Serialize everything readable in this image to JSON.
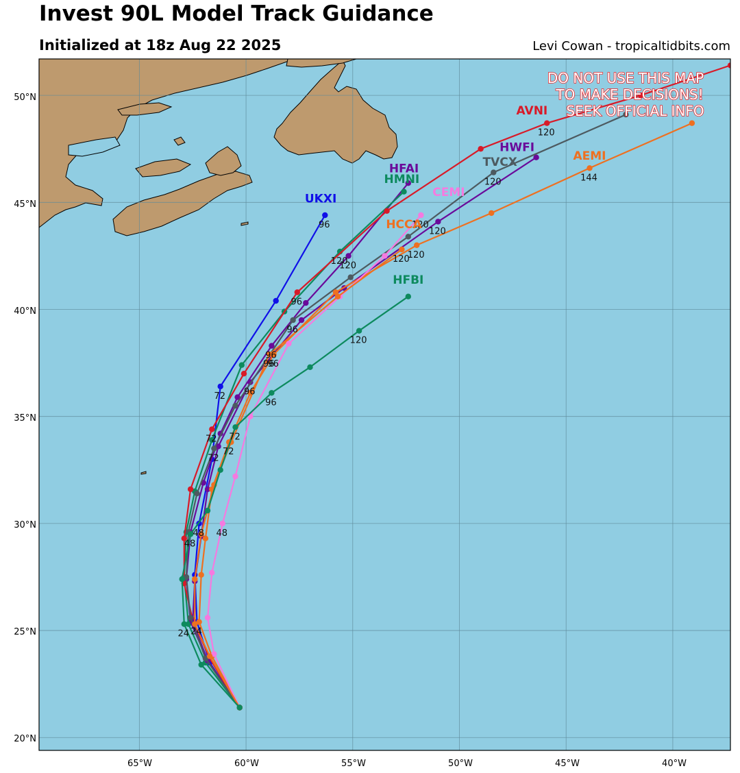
{
  "header": {
    "title": "Invest 90L Model Track Guidance",
    "subtitle": "Initialized at 18z Aug 22 2025",
    "credit": "Levi Cowan - tropicaltidbits.com"
  },
  "warning": [
    "DO NOT USE THIS MAP",
    "TO MAKE DECISIONS!",
    "SEEK OFFICIAL INFO"
  ],
  "colors": {
    "ocean": "#90cde2",
    "land": "#be9a6e",
    "grid": "#5e8a9a",
    "warning": "#e8262a"
  },
  "axes": {
    "lon_ticks": [
      "65°W",
      "60°W",
      "55°W",
      "50°W",
      "45°W",
      "40°W"
    ],
    "lat_ticks": [
      "20°N",
      "25°N",
      "30°N",
      "35°N",
      "40°N",
      "45°N",
      "50°N"
    ]
  },
  "chart_data": {
    "type": "map",
    "lon_range": [
      -69.7,
      -37.3
    ],
    "lat_range": [
      19.4,
      51.7
    ],
    "grid": true,
    "series": [
      {
        "name": "UKXI",
        "color": "#1010e8",
        "points": [
          [
            -60.3,
            21.4
          ],
          [
            -61.7,
            23.5
          ],
          [
            -62.3,
            25.4
          ],
          [
            -62.4,
            27.6
          ],
          [
            -62.2,
            30.0
          ],
          [
            -61.6,
            33.0
          ],
          [
            -61.2,
            36.4
          ],
          [
            -58.6,
            40.4
          ],
          [
            -56.3,
            44.4
          ]
        ],
        "hour_labels": [
          {
            "lon": -56.3,
            "lat": 44.4,
            "text": "96"
          },
          {
            "lon": -61.2,
            "lat": 36.4,
            "text": "72"
          },
          {
            "lon": -62.2,
            "lat": 30.0,
            "text": "48"
          },
          {
            "lon": -62.3,
            "lat": 25.4,
            "text": "24"
          }
        ]
      },
      {
        "name": "HFAI",
        "color": "#6a0a9a",
        "points": [
          [
            -60.3,
            21.4
          ],
          [
            -61.8,
            23.6
          ],
          [
            -62.6,
            25.4
          ],
          [
            -62.8,
            27.4
          ],
          [
            -62.6,
            29.6
          ],
          [
            -62.0,
            31.9
          ],
          [
            -61.2,
            34.2
          ],
          [
            -60.4,
            35.9
          ],
          [
            -58.8,
            38.3
          ],
          [
            -57.2,
            40.3
          ],
          [
            -55.2,
            42.5
          ],
          [
            -52.4,
            45.9
          ]
        ],
        "hour_labels": [
          {
            "lon": -55.2,
            "lat": 42.5,
            "text": "120"
          },
          {
            "lon": -58.8,
            "lat": 38.3,
            "text": "96"
          }
        ]
      },
      {
        "name": "HMNI",
        "color": "#0d8a5e",
        "points": [
          [
            -60.3,
            21.4
          ],
          [
            -61.9,
            23.5
          ],
          [
            -62.7,
            25.3
          ],
          [
            -62.9,
            27.5
          ],
          [
            -62.8,
            29.6
          ],
          [
            -62.4,
            31.5
          ],
          [
            -61.6,
            33.9
          ],
          [
            -60.2,
            37.4
          ],
          [
            -58.2,
            39.9
          ],
          [
            -55.6,
            42.7
          ],
          [
            -52.6,
            45.5
          ]
        ],
        "hour_labels": [
          {
            "lon": -55.6,
            "lat": 42.7,
            "text": "120"
          }
        ]
      },
      {
        "name": "AVNI",
        "color": "#d81a28",
        "points": [
          [
            -60.3,
            21.4
          ],
          [
            -61.7,
            23.7
          ],
          [
            -62.5,
            25.5
          ],
          [
            -62.9,
            27.2
          ],
          [
            -62.9,
            29.3
          ],
          [
            -62.6,
            31.6
          ],
          [
            -61.6,
            34.4
          ],
          [
            -60.1,
            37.0
          ],
          [
            -57.6,
            40.8
          ],
          [
            -53.4,
            44.6
          ],
          [
            -49.0,
            47.5
          ],
          [
            -45.9,
            48.7
          ],
          [
            -41.5,
            50.0
          ],
          [
            -37.3,
            51.4
          ]
        ],
        "hour_labels": [
          {
            "lon": -45.9,
            "lat": 48.7,
            "text": "120"
          },
          {
            "lon": -57.6,
            "lat": 40.8,
            "text": "96"
          },
          {
            "lon": -61.6,
            "lat": 34.4,
            "text": "72"
          }
        ]
      },
      {
        "name": "HWFI",
        "color": "#6a0a9a",
        "points": [
          [
            -60.3,
            21.4
          ],
          [
            -61.8,
            23.6
          ],
          [
            -62.5,
            25.4
          ],
          [
            -62.4,
            27.3
          ],
          [
            -62.1,
            29.4
          ],
          [
            -61.8,
            31.6
          ],
          [
            -61.3,
            33.6
          ],
          [
            -59.8,
            36.6
          ],
          [
            -57.4,
            39.5
          ],
          [
            -55.4,
            41.0
          ],
          [
            -51.0,
            44.1
          ],
          [
            -46.4,
            47.1
          ]
        ],
        "hour_labels": [
          {
            "lon": -51.0,
            "lat": 44.1,
            "text": "120"
          },
          {
            "lon": -59.8,
            "lat": 36.6,
            "text": "96"
          }
        ]
      },
      {
        "name": "TVCX",
        "color": "#4d5a60",
        "points": [
          [
            -60.3,
            21.4
          ],
          [
            -61.9,
            23.7
          ],
          [
            -62.6,
            25.6
          ],
          [
            -62.8,
            27.5
          ],
          [
            -62.7,
            29.6
          ],
          [
            -62.3,
            31.4
          ],
          [
            -61.5,
            33.5
          ],
          [
            -60.5,
            35.5
          ],
          [
            -57.8,
            39.5
          ],
          [
            -55.1,
            41.5
          ],
          [
            -52.4,
            43.4
          ],
          [
            -48.4,
            46.4
          ],
          [
            -42.2,
            49.1
          ]
        ],
        "hour_labels": [
          {
            "lon": -48.4,
            "lat": 46.4,
            "text": "120"
          },
          {
            "lon": -57.8,
            "lat": 39.5,
            "text": "96"
          },
          {
            "lon": -61.5,
            "lat": 33.5,
            "text": "72"
          }
        ]
      },
      {
        "name": "AEMI",
        "color": "#ee7020",
        "points": [
          [
            -60.3,
            21.4
          ],
          [
            -61.6,
            23.8
          ],
          [
            -62.2,
            25.4
          ],
          [
            -62.1,
            27.6
          ],
          [
            -61.9,
            29.3
          ],
          [
            -61.6,
            31.6
          ],
          [
            -60.8,
            33.8
          ],
          [
            -59.8,
            36.1
          ],
          [
            -58.7,
            37.9
          ],
          [
            -55.8,
            40.8
          ],
          [
            -52.0,
            43.0
          ],
          [
            -48.5,
            44.5
          ],
          [
            -43.9,
            46.6
          ],
          [
            -39.1,
            48.7
          ]
        ],
        "hour_labels": [
          {
            "lon": -43.9,
            "lat": 46.6,
            "text": "144"
          },
          {
            "lon": -52.0,
            "lat": 43.0,
            "text": "120"
          },
          {
            "lon": -58.7,
            "lat": 37.9,
            "text": "96"
          },
          {
            "lon": -60.8,
            "lat": 33.8,
            "text": "72"
          }
        ]
      },
      {
        "name": "CEMI",
        "color": "#f57ae0",
        "points": [
          [
            -60.3,
            21.4
          ],
          [
            -61.5,
            23.9
          ],
          [
            -61.8,
            25.6
          ],
          [
            -61.6,
            27.7
          ],
          [
            -61.1,
            30.0
          ],
          [
            -60.5,
            32.2
          ],
          [
            -59.8,
            35.0
          ],
          [
            -58.0,
            38.4
          ],
          [
            -55.6,
            40.6
          ],
          [
            -53.5,
            42.5
          ],
          [
            -51.8,
            44.4
          ]
        ],
        "hour_labels": [
          {
            "lon": -51.8,
            "lat": 44.4,
            "text": "120"
          },
          {
            "lon": -61.1,
            "lat": 30.0,
            "text": "48"
          }
        ]
      },
      {
        "name": "HCCA",
        "color": "#ee7020",
        "points": [
          [
            -60.3,
            21.4
          ],
          [
            -61.7,
            23.8
          ],
          [
            -62.4,
            25.3
          ],
          [
            -62.4,
            27.4
          ],
          [
            -62.1,
            29.5
          ],
          [
            -61.5,
            31.8
          ],
          [
            -60.7,
            33.8
          ],
          [
            -58.9,
            37.9
          ],
          [
            -55.7,
            40.6
          ],
          [
            -52.7,
            42.8
          ]
        ],
        "hour_labels": [
          {
            "lon": -52.7,
            "lat": 42.8,
            "text": "120"
          },
          {
            "lon": -58.9,
            "lat": 37.9,
            "text": "96"
          }
        ]
      },
      {
        "name": "HFBI",
        "color": "#0d8a5e",
        "points": [
          [
            -60.3,
            21.4
          ],
          [
            -62.1,
            23.4
          ],
          [
            -62.9,
            25.3
          ],
          [
            -63.0,
            27.4
          ],
          [
            -62.6,
            29.5
          ],
          [
            -61.8,
            30.6
          ],
          [
            -61.2,
            32.5
          ],
          [
            -60.5,
            34.5
          ],
          [
            -58.8,
            36.1
          ],
          [
            -57.0,
            37.3
          ],
          [
            -54.7,
            39.0
          ],
          [
            -52.4,
            40.6
          ]
        ],
        "hour_labels": [
          {
            "lon": -54.7,
            "lat": 39.0,
            "text": "120"
          },
          {
            "lon": -58.8,
            "lat": 36.1,
            "text": "96"
          },
          {
            "lon": -60.5,
            "lat": 34.5,
            "text": "72"
          },
          {
            "lon": -62.6,
            "lat": 29.5,
            "text": "48"
          },
          {
            "lon": -62.9,
            "lat": 25.3,
            "text": "24"
          }
        ]
      }
    ],
    "model_labels": [
      {
        "text": "UKXI",
        "color": "#1010e8",
        "lon": -56.5,
        "lat": 45.0
      },
      {
        "text": "HFAI",
        "color": "#6a0a9a",
        "lon": -52.6,
        "lat": 46.4
      },
      {
        "text": "HMNI",
        "color": "#0d8a5e",
        "lon": -52.7,
        "lat": 45.9
      },
      {
        "text": "AVNI",
        "color": "#d81a28",
        "lon": -46.6,
        "lat": 49.1
      },
      {
        "text": "HWFI",
        "color": "#6a0a9a",
        "lon": -47.3,
        "lat": 47.4
      },
      {
        "text": "TVCX",
        "color": "#4d5a60",
        "lon": -48.1,
        "lat": 46.7
      },
      {
        "text": "AEMI",
        "color": "#ee7020",
        "lon": -43.9,
        "lat": 47.0
      },
      {
        "text": "CEMI",
        "color": "#f57ae0",
        "lon": -50.5,
        "lat": 45.3
      },
      {
        "text": "HCCA",
        "color": "#ee7020",
        "lon": -52.6,
        "lat": 43.8
      },
      {
        "text": "HFBI",
        "color": "#0d8a5e",
        "lon": -52.4,
        "lat": 41.2
      }
    ]
  }
}
